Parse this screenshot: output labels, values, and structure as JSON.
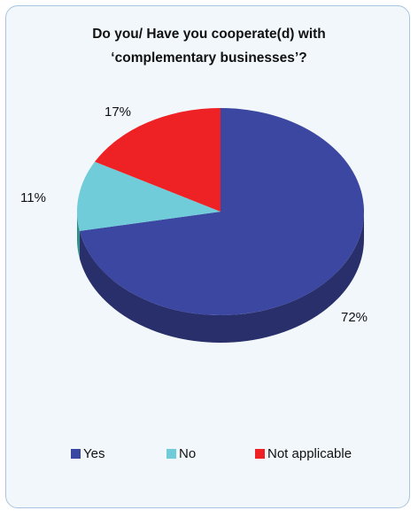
{
  "chart_data": {
    "type": "pie",
    "title": "Do you/ Have you cooperate(d) with ‘complementary businesses’?",
    "title_lines": [
      "Do you/ Have you cooperate(d) with",
      "‘complementary businesses’?"
    ],
    "categories": [
      "Yes",
      "No",
      "Not applicable"
    ],
    "values": [
      72,
      11,
      17
    ],
    "labels": [
      "72%",
      "11%",
      "17%"
    ],
    "colors": [
      "#3b47a0",
      "#70ccd9",
      "#ee2224"
    ],
    "side_colors": [
      "#292f6a",
      "#2f8f86",
      "#a31518"
    ],
    "style": "3d",
    "legend_position": "bottom"
  }
}
